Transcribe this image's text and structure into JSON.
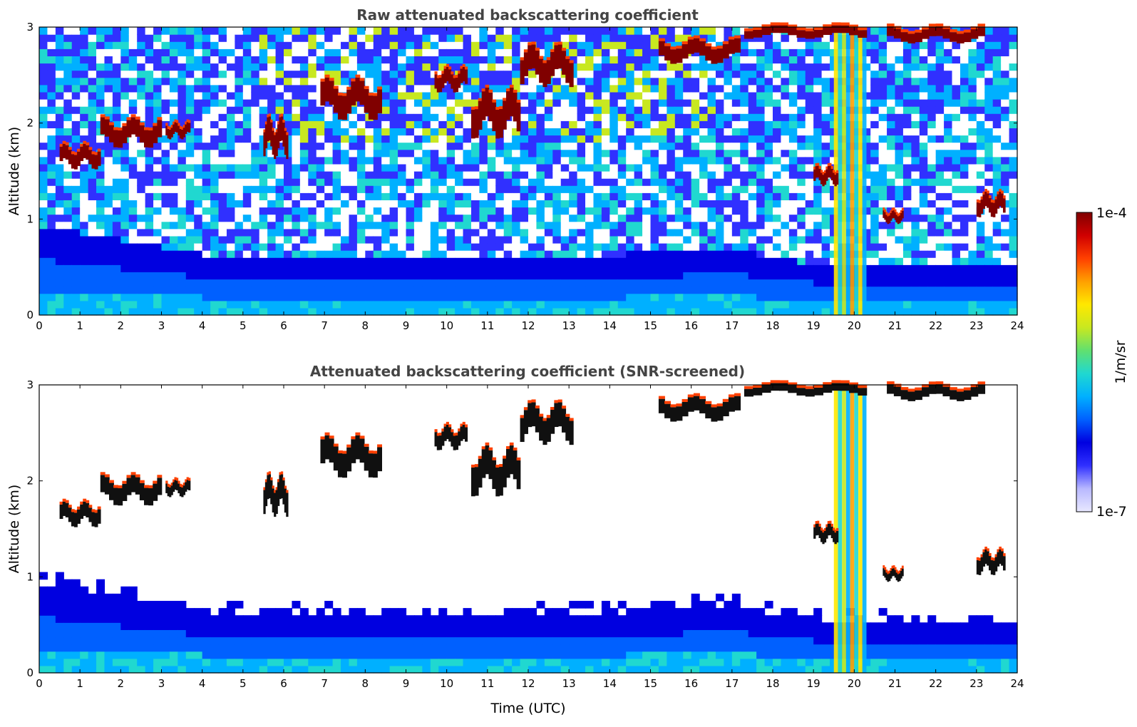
{
  "chart_data": [
    {
      "type": "heatmap",
      "title": "Raw attenuated backscattering coefficient",
      "xlabel": "",
      "ylabel": "Altitude (km)",
      "xlim": [
        0,
        24
      ],
      "ylim": [
        0,
        3
      ],
      "x_ticks": [
        "0",
        "1",
        "2",
        "3",
        "4",
        "5",
        "6",
        "7",
        "8",
        "9",
        "10",
        "11",
        "12",
        "13",
        "14",
        "15",
        "16",
        "17",
        "18",
        "19",
        "20",
        "21",
        "22",
        "23",
        "24"
      ],
      "y_ticks": [
        "0",
        "1",
        "2",
        "3"
      ],
      "cloud_layers": [
        {
          "t0": 0.5,
          "t1": 1.5,
          "z": 1.65,
          "thickness": 0.15
        },
        {
          "t0": 1.5,
          "t1": 3.0,
          "z": 1.9,
          "thickness": 0.18
        },
        {
          "t0": 3.1,
          "t1": 3.7,
          "z": 1.92,
          "thickness": 0.1
        },
        {
          "t0": 5.5,
          "t1": 6.1,
          "z": 1.85,
          "thickness": 0.25
        },
        {
          "t0": 6.9,
          "t1": 8.4,
          "z": 2.25,
          "thickness": 0.25
        },
        {
          "t0": 9.7,
          "t1": 10.5,
          "z": 2.45,
          "thickness": 0.15
        },
        {
          "t0": 10.6,
          "t1": 11.8,
          "z": 2.1,
          "thickness": 0.3
        },
        {
          "t0": 11.8,
          "t1": 13.1,
          "z": 2.6,
          "thickness": 0.25
        },
        {
          "t0": 15.2,
          "t1": 17.2,
          "z": 2.75,
          "thickness": 0.15
        },
        {
          "t0": 17.3,
          "t1": 20.3,
          "z": 2.95,
          "thickness": 0.08
        },
        {
          "t0": 20.8,
          "t1": 23.2,
          "z": 2.92,
          "thickness": 0.1
        },
        {
          "t0": 19.0,
          "t1": 19.6,
          "z": 1.45,
          "thickness": 0.12
        },
        {
          "t0": 20.7,
          "t1": 21.2,
          "z": 1.02,
          "thickness": 0.08
        },
        {
          "t0": 23.0,
          "t1": 23.7,
          "z": 1.15,
          "thickness": 0.15
        }
      ],
      "precipitation_shafts": [
        {
          "t0": 19.5,
          "t1": 20.3,
          "z_top": 3.0
        }
      ],
      "boundary_layer_top": [
        {
          "t": 0,
          "z": 0.9
        },
        {
          "t": 4,
          "z": 0.6
        },
        {
          "t": 8,
          "z": 0.55
        },
        {
          "t": 12,
          "z": 0.55
        },
        {
          "t": 17,
          "z": 0.65
        },
        {
          "t": 19,
          "z": 0.5
        },
        {
          "t": 24,
          "z": 0.45
        }
      ]
    },
    {
      "type": "heatmap",
      "title": "Attenuated backscattering coefficient (SNR-screened)",
      "xlabel": "Time (UTC)",
      "ylabel": "Altitude (km)",
      "xlim": [
        0,
        24
      ],
      "ylim": [
        0,
        3
      ],
      "x_ticks": [
        "0",
        "1",
        "2",
        "3",
        "4",
        "5",
        "6",
        "7",
        "8",
        "9",
        "10",
        "11",
        "12",
        "13",
        "14",
        "15",
        "16",
        "17",
        "18",
        "19",
        "20",
        "21",
        "22",
        "23",
        "24"
      ],
      "y_ticks": [
        "0",
        "1",
        "2",
        "3"
      ],
      "screened": true
    }
  ],
  "colorbar": {
    "max_label": "1e-4",
    "min_label": "1e-7",
    "unit_label": "1/m/sr",
    "colors": [
      "#e8e8ff",
      "#b8b8ff",
      "#3030ff",
      "#0000e0",
      "#0060ff",
      "#00b0ff",
      "#20d8d0",
      "#60e070",
      "#c8e820",
      "#ffe800",
      "#ffa000",
      "#ff4000",
      "#d00000",
      "#800000"
    ]
  }
}
